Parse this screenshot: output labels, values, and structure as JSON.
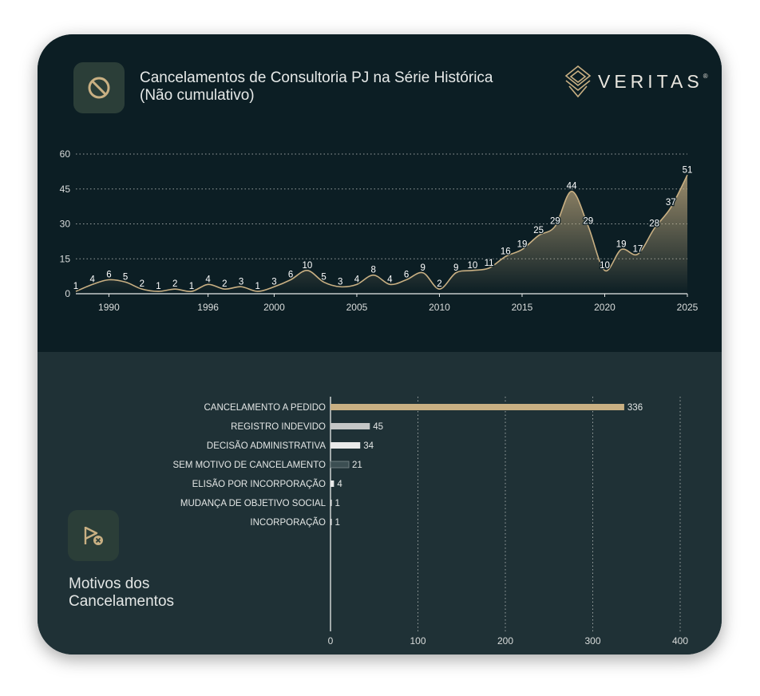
{
  "header": {
    "title_line1": "Cancelamentos de Consultoria PJ na Série Histórica",
    "title_line2": "(Não cumulativo)",
    "icon": "prohibited-icon"
  },
  "brand": {
    "name": "VERITAS",
    "mark": "®",
    "icon": "veritas-diamond-logo"
  },
  "section2": {
    "title_line1": "Motivos dos",
    "title_line2": "Cancelamentos",
    "icon": "cancel-flag-icon"
  },
  "colors": {
    "gold": "#c9b083",
    "background_top": "#0c1e24",
    "background_bottom": "#1f3136",
    "icon_box": "#2b3e38"
  },
  "chart_data": [
    {
      "type": "area",
      "title": "",
      "xlabel": "",
      "ylabel": "",
      "x": [
        1988,
        1989,
        1990,
        1991,
        1992,
        1993,
        1994,
        1995,
        1996,
        1997,
        1998,
        1999,
        2000,
        2001,
        2002,
        2003,
        2004,
        2005,
        2006,
        2007,
        2008,
        2009,
        2010,
        2011,
        2012,
        2013,
        2014,
        2015,
        2016,
        2017,
        2018,
        2019,
        2020,
        2021,
        2022,
        2023,
        2024,
        2025
      ],
      "values": [
        1,
        4,
        6,
        5,
        2,
        1,
        2,
        1,
        4,
        2,
        3,
        1,
        3,
        6,
        10,
        5,
        3,
        4,
        8,
        4,
        6,
        9,
        2,
        9,
        10,
        11,
        16,
        19,
        25,
        29,
        44,
        29,
        10,
        19,
        17,
        28,
        37,
        51
      ],
      "x_ticks": [
        1990,
        1996,
        2000,
        2005,
        2010,
        2015,
        2020,
        2025
      ],
      "y_ticks": [
        0,
        15,
        30,
        45,
        60
      ],
      "ylim": [
        0,
        60
      ],
      "grid": true,
      "legend": "none"
    },
    {
      "type": "bar",
      "orientation": "horizontal",
      "categories": [
        "CANCELAMENTO A PEDIDO",
        "REGISTRO INDEVIDO",
        "DECISÃO ADMINISTRATIVA",
        "SEM MOTIVO DE CANCELAMENTO",
        "ELISÃO POR INCORPORAÇÃO",
        "MUDANÇA DE OBJETIVO SOCIAL",
        "INCORPORAÇÃO"
      ],
      "values": [
        336,
        45,
        34,
        21,
        4,
        1,
        1
      ],
      "bar_colors": [
        "#c9b083",
        "#c4c6c6",
        "#e9eaea",
        "#3b4e52",
        "#e9eaea",
        "#e9eaea",
        "#e9eaea"
      ],
      "x_ticks": [
        0,
        100,
        200,
        300,
        400
      ],
      "xlim": [
        0,
        400
      ],
      "grid": true,
      "legend": "none"
    }
  ]
}
